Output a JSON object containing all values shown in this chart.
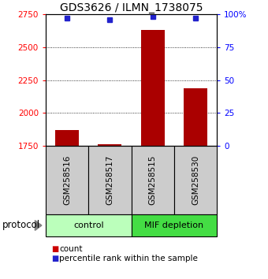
{
  "title": "GDS3626 / ILMN_1738075",
  "samples": [
    "GSM258516",
    "GSM258517",
    "GSM258515",
    "GSM258530"
  ],
  "count_values": [
    1870,
    1762,
    2630,
    2185
  ],
  "percentile_values": [
    97,
    96,
    98,
    97
  ],
  "ylim_left": [
    1750,
    2750
  ],
  "ylim_right": [
    0,
    100
  ],
  "yticks_left": [
    1750,
    2000,
    2250,
    2500,
    2750
  ],
  "yticks_right": [
    0,
    25,
    50,
    75,
    100
  ],
  "ytick_labels_right": [
    "0",
    "25",
    "50",
    "75",
    "100%"
  ],
  "bar_color": "#aa0000",
  "dot_color": "#2222cc",
  "bar_width": 0.55,
  "groups": [
    {
      "label": "control",
      "samples": [
        0,
        1
      ],
      "color": "#bbffbb"
    },
    {
      "label": "MIF depletion",
      "samples": [
        2,
        3
      ],
      "color": "#44dd44"
    }
  ],
  "protocol_label": "protocol",
  "legend_count_color": "#cc0000",
  "legend_dot_color": "#2222cc",
  "sample_box_color": "#cccccc",
  "grid_color": "#000000"
}
